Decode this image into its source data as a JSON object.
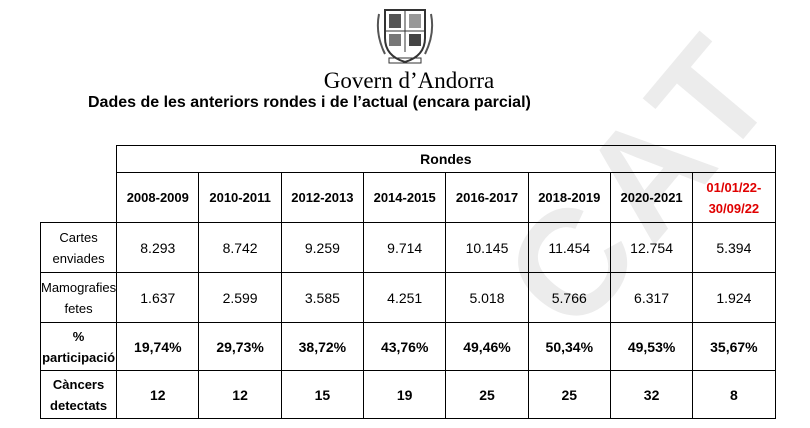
{
  "header": {
    "org": "Govern d’Andorra",
    "title": "Dades de les anteriors rondes i de l’actual (encara parcial)"
  },
  "table": {
    "group_header": "Rondes",
    "columns": [
      "2008-2009",
      "2010-2011",
      "2012-2013",
      "2014-2015",
      "2016-2017",
      "2018-2019",
      "2020-2021",
      "01/01/22-\n30/09/22"
    ],
    "rows": [
      {
        "label": "Cartes\nenviades",
        "cells": [
          "8.293",
          "8.742",
          "9.259",
          "9.714",
          "10.145",
          "11.454",
          "12.754",
          "5.394"
        ]
      },
      {
        "label": "Mamografies\nfetes",
        "cells": [
          "1.637",
          "2.599",
          "3.585",
          "4.251",
          "5.018",
          "5.766",
          "6.317",
          "1.924"
        ]
      },
      {
        "label": "%\nparticipació",
        "cells": [
          "19,74%",
          "29,73%",
          "38,72%",
          "43,76%",
          "49,46%",
          "50,34%",
          "49,53%",
          "35,67%"
        ]
      },
      {
        "label": "Càncers\ndetectats",
        "cells": [
          "12",
          "12",
          "15",
          "19",
          "25",
          "25",
          "32",
          "8"
        ]
      }
    ]
  },
  "watermark": "CAT"
}
